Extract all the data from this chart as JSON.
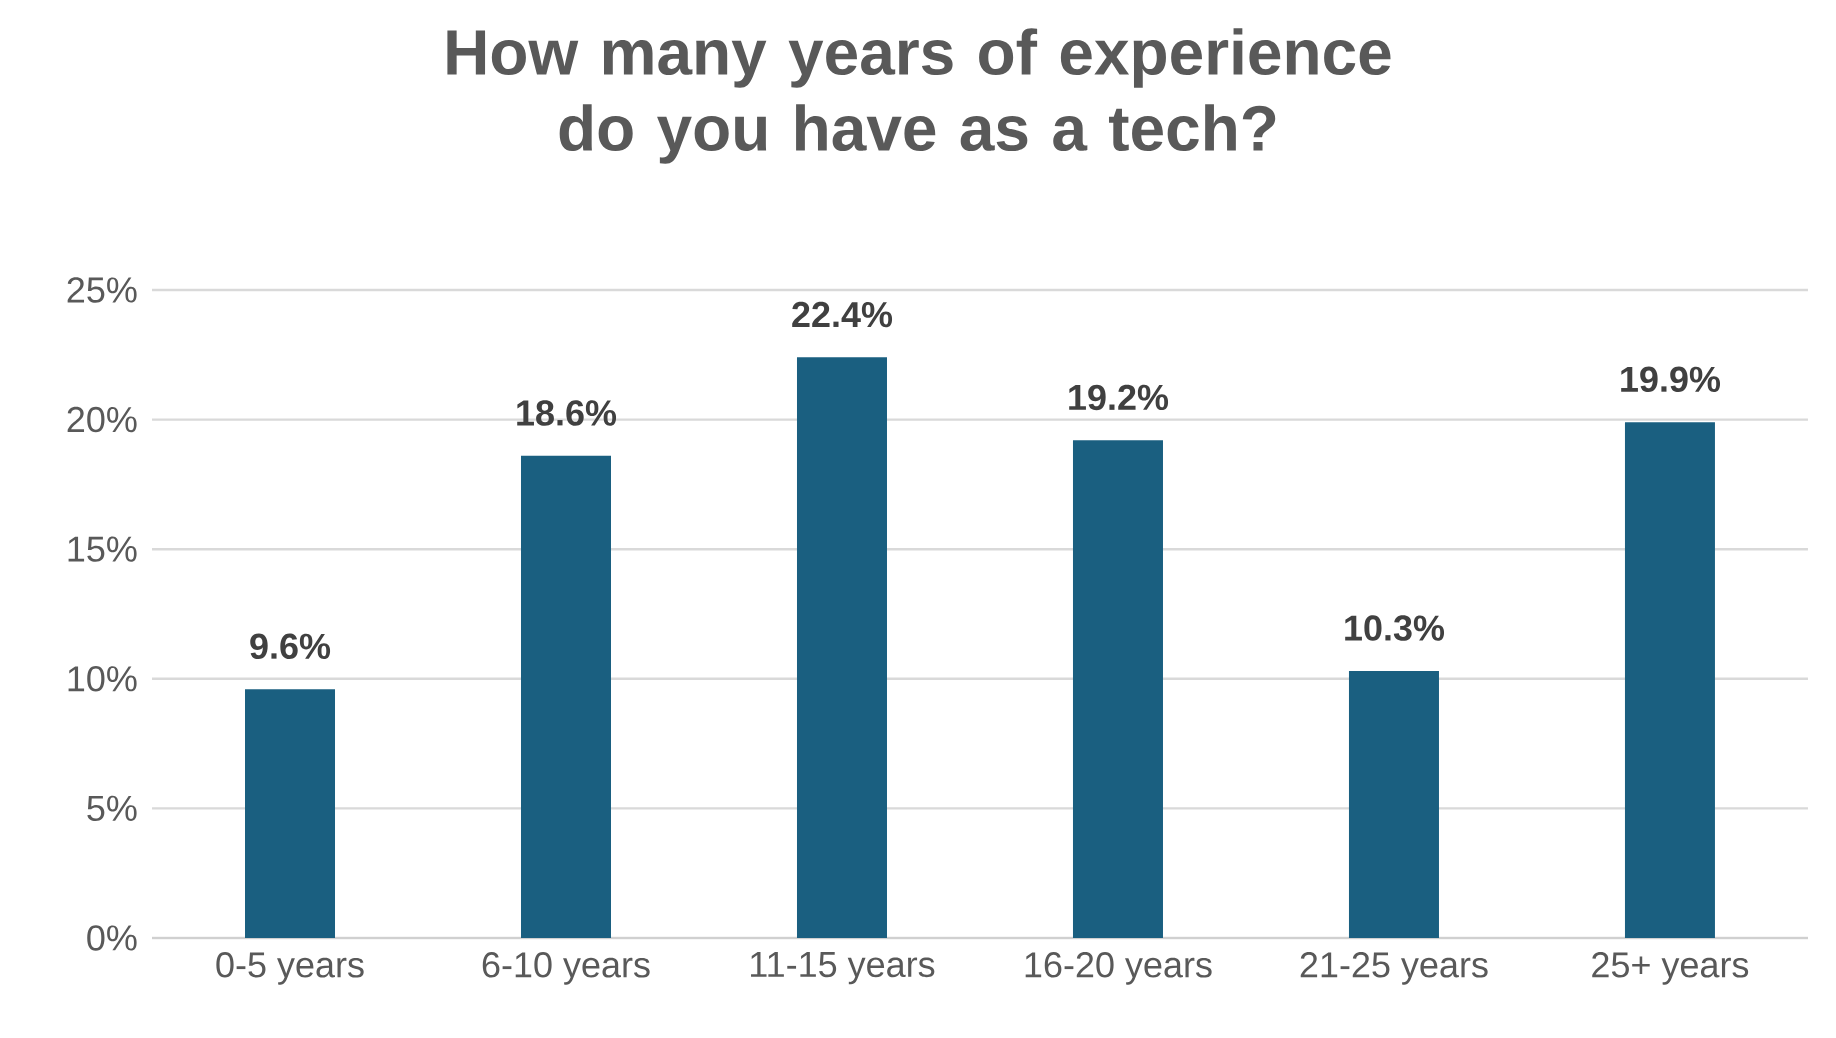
{
  "chart_data": {
    "type": "bar",
    "title": "How many years of experience do you have as a tech?",
    "categories": [
      "0-5 years",
      "6-10 years",
      "11-15 years",
      "16-20 years",
      "21-25 years",
      "25+ years"
    ],
    "values": [
      9.6,
      18.6,
      22.4,
      19.2,
      10.3,
      19.9
    ],
    "value_labels": [
      "9.6%",
      "18.6%",
      "22.4%",
      "19.2%",
      "10.3%",
      "19.9%"
    ],
    "color": "#1a5f80",
    "ylim": [
      0,
      25
    ],
    "yticks": [
      {
        "value": 0,
        "label": "0%"
      },
      {
        "value": 5,
        "label": "5%"
      },
      {
        "value": 10,
        "label": "10%"
      },
      {
        "value": 15,
        "label": "15%"
      },
      {
        "value": 20,
        "label": "20%"
      },
      {
        "value": 25,
        "label": "25%"
      }
    ],
    "grid": "y"
  }
}
